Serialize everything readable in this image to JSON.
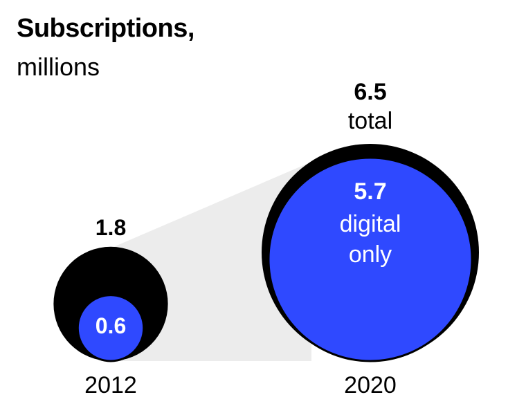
{
  "chart_data": {
    "type": "bubble",
    "title": "Subscriptions,",
    "subtitle": "millions",
    "categories": [
      "2012",
      "2020"
    ],
    "series": [
      {
        "name": "total",
        "values": [
          1.8,
          6.5
        ]
      },
      {
        "name": "digital only",
        "values": [
          0.6,
          5.7
        ]
      }
    ],
    "labels": {
      "2012": {
        "total_value": "1.8",
        "digital_value": "0.6"
      },
      "2020": {
        "total_value": "6.5",
        "total_label": "total",
        "digital_value": "5.7",
        "digital_label_1": "digital",
        "digital_label_2": "only"
      }
    },
    "colors": {
      "total": "#000000",
      "digital": "#2f49ff",
      "connector": "#ececec",
      "text": "#000000",
      "text_on_digital": "#ffffff"
    }
  }
}
